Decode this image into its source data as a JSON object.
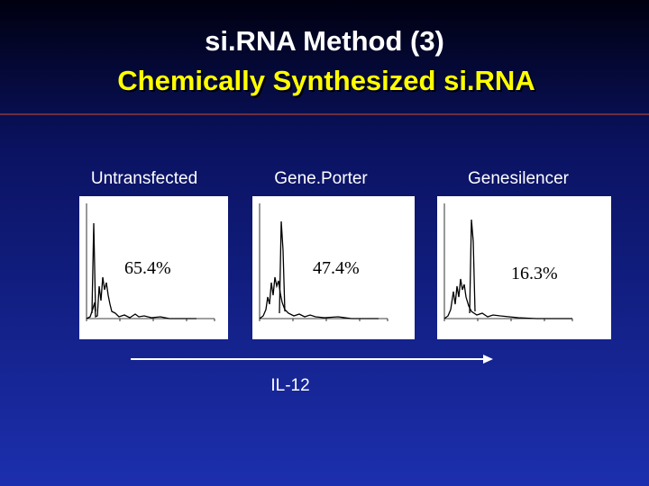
{
  "header": {
    "title": "si.RNA Method (3)",
    "subtitle": "Chemically Synthesized si.RNA"
  },
  "panels": [
    {
      "label": "Untransfected",
      "percent": "65.4%"
    },
    {
      "label": "Gene.Porter",
      "percent": "47.4%"
    },
    {
      "label": "Genesilencer",
      "percent": "16.3%"
    }
  ],
  "axis": {
    "label": "IL-12"
  }
}
